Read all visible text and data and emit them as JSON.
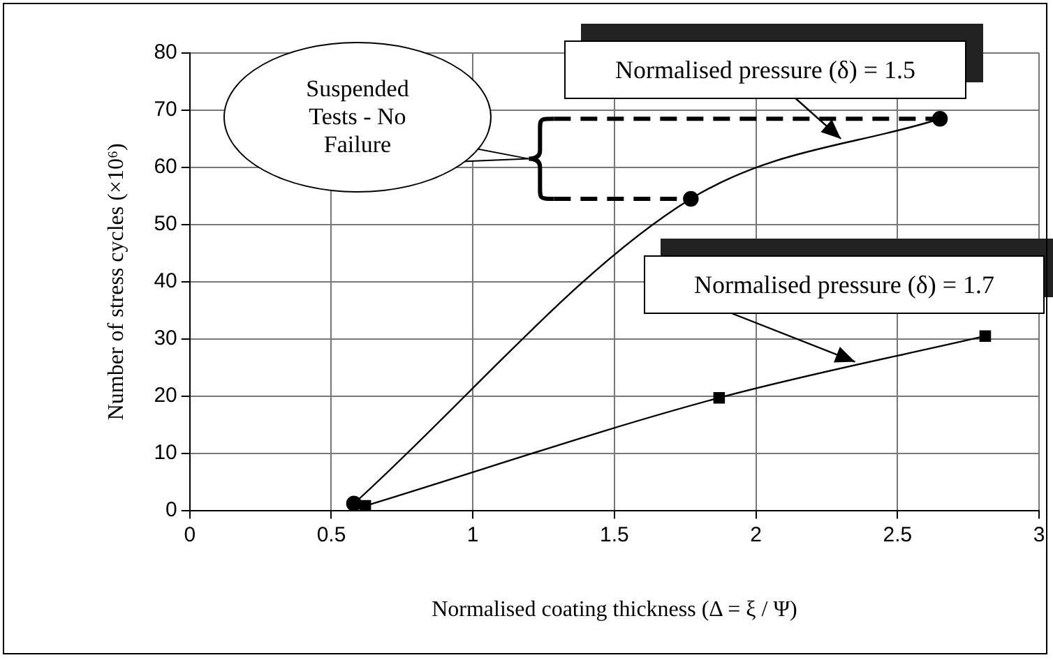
{
  "chart_data": {
    "type": "line",
    "xlabel": "Normalised coating thickness (Δ = ξ / Ψ)",
    "ylabel": "Number of stress cycles (×10⁶)",
    "xlim": [
      0,
      3
    ],
    "xticks": [
      0,
      0.5,
      1,
      1.5,
      2,
      2.5,
      3
    ],
    "ylim": [
      0,
      80
    ],
    "yticks": [
      0,
      10,
      20,
      30,
      40,
      50,
      60,
      70,
      80
    ],
    "grid": true,
    "series": [
      {
        "color": "#000000",
        "marker": "circle",
        "x": [
          0.58,
          1.77,
          2.65
        ],
        "values": [
          1.2,
          54.5,
          68.5
        ]
      },
      {
        "color": "#000000",
        "marker": "square",
        "x": [
          0.62,
          1.87,
          2.81
        ],
        "values": [
          0.8,
          19.7,
          30.5
        ]
      }
    ],
    "annotations": [
      {
        "text": "Normalised pressure (δ) = 1.5",
        "x": 2.3,
        "y": 65
      },
      {
        "text": "Normalised pressure (δ) = 1.7",
        "x": 2.35,
        "y": 26
      },
      "Suspended Tests - No Failure"
    ]
  }
}
